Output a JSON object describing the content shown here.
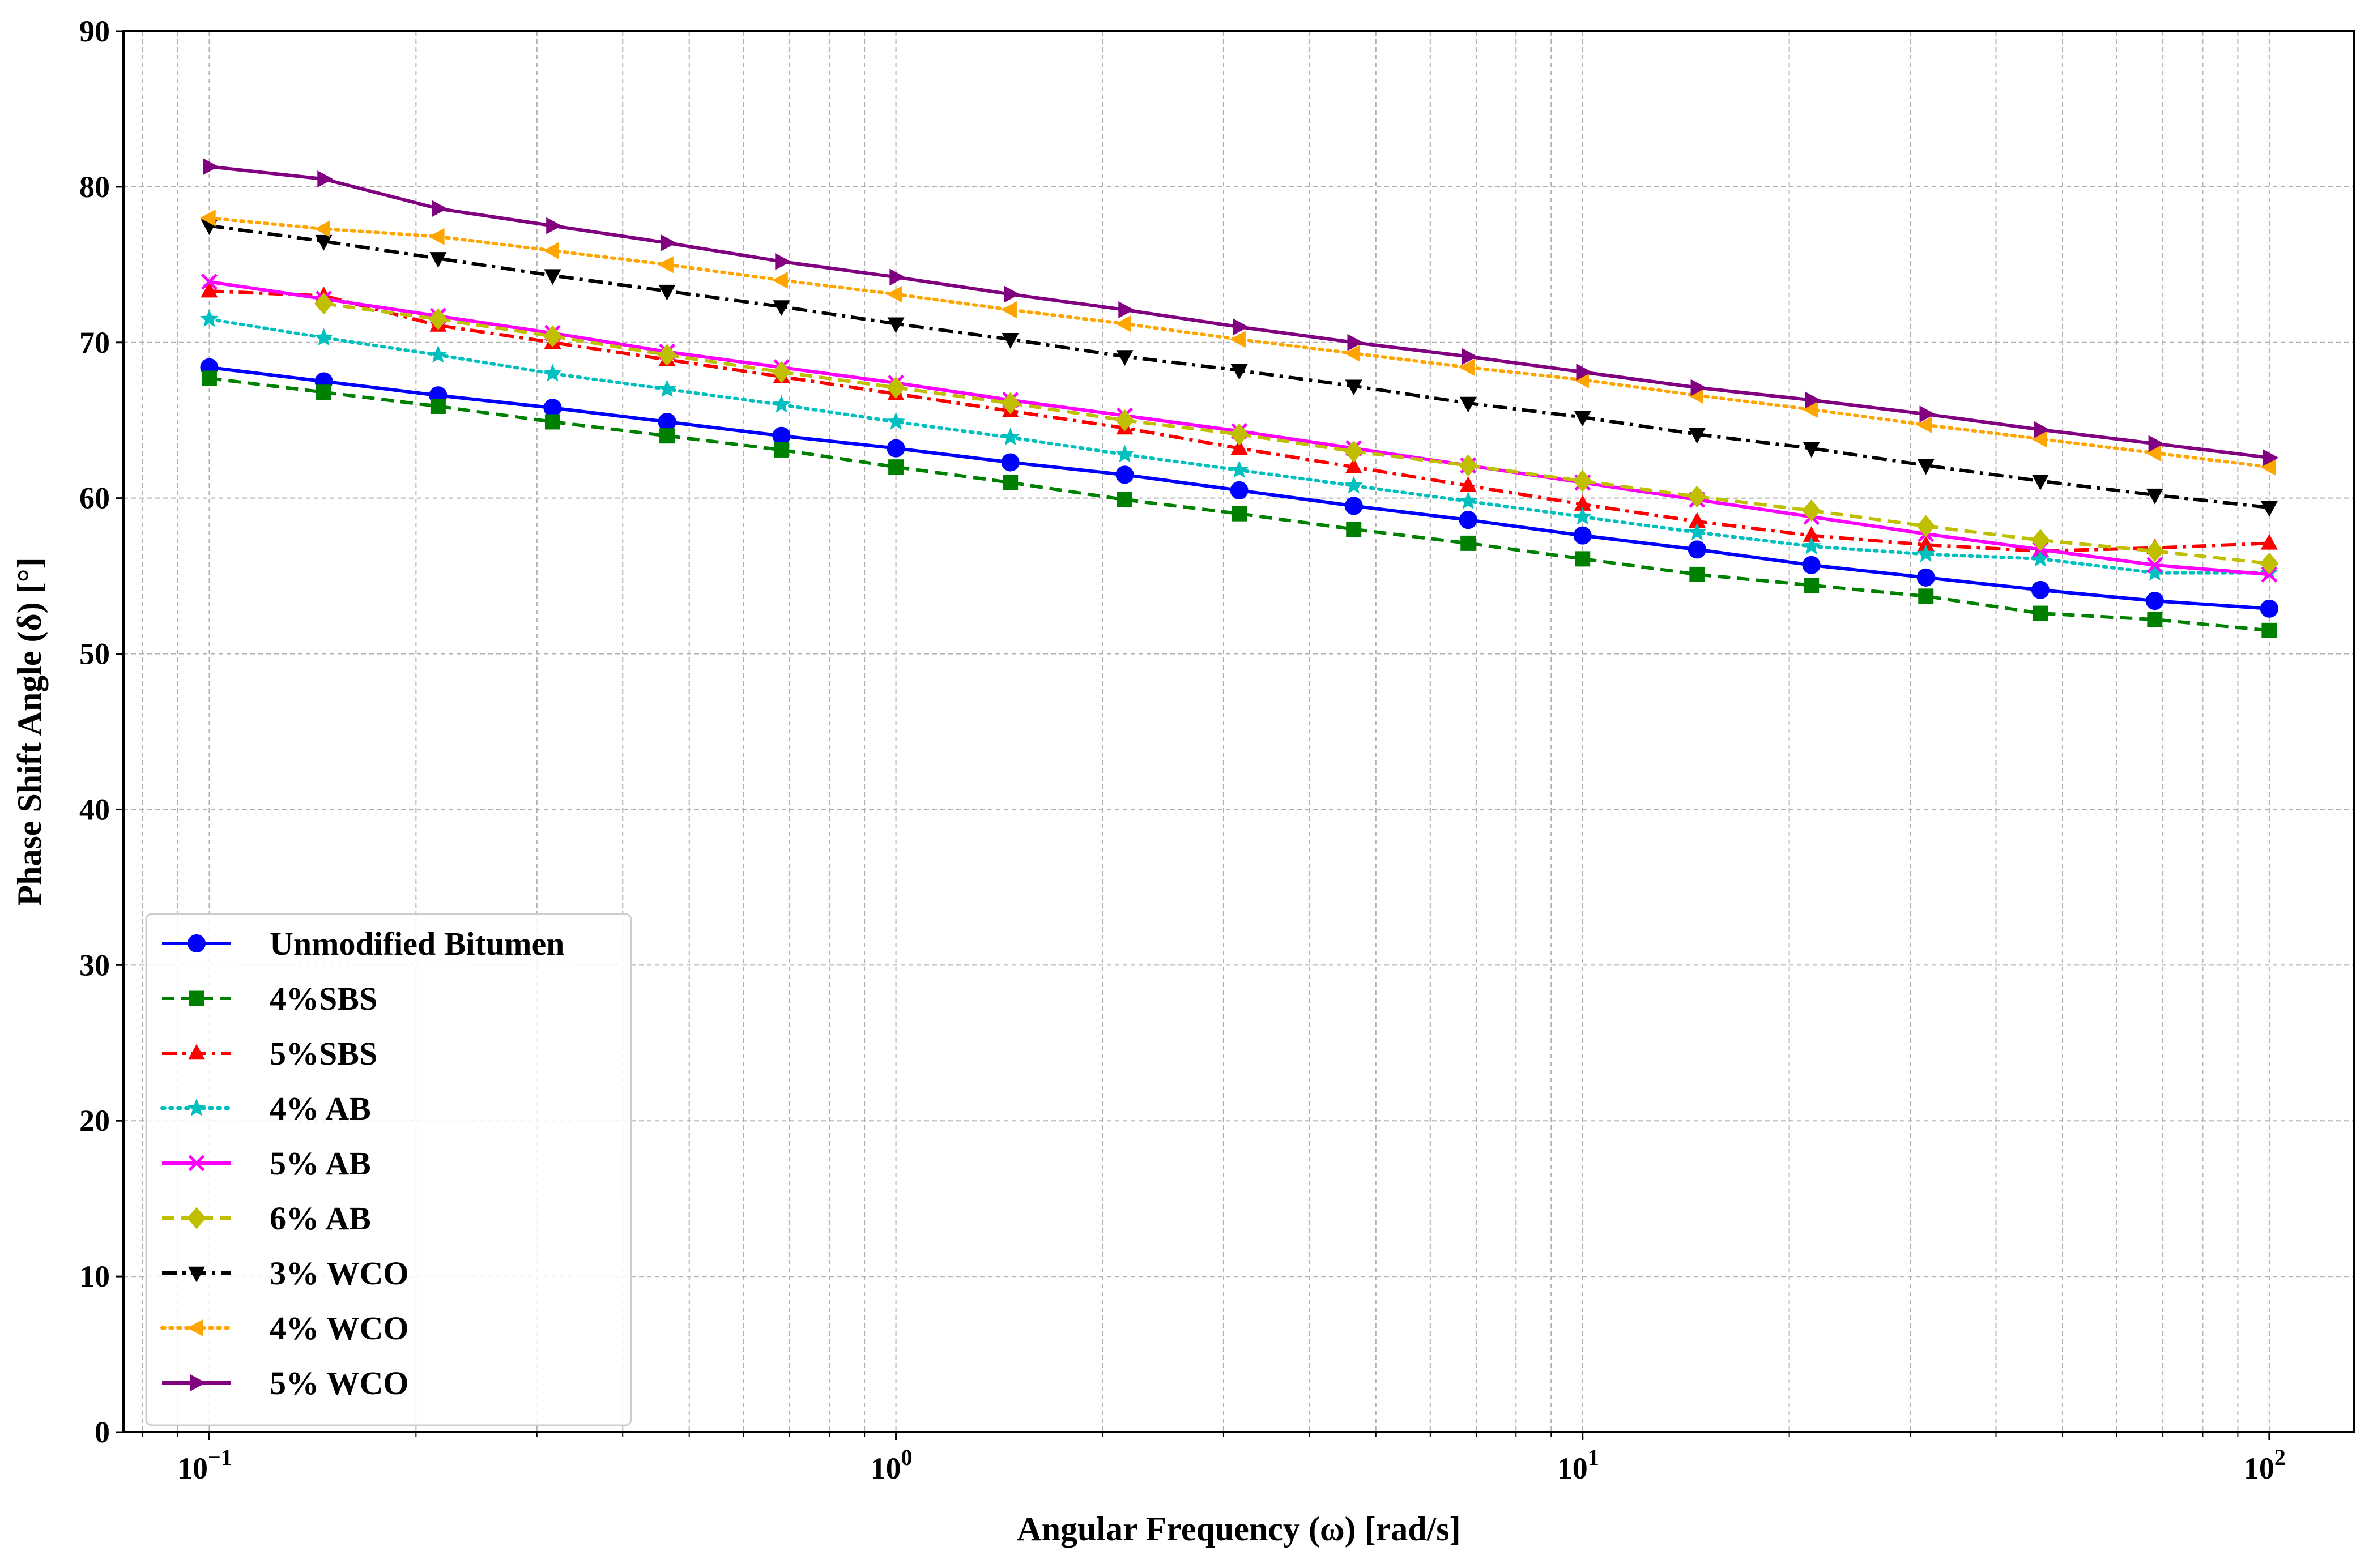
{
  "chart_data": {
    "type": "line",
    "title": "",
    "xlabel": "Angular Frequency (ω) [rad/s]",
    "ylabel": "Phase Shift Angle (δ) [°]",
    "xscale": "log",
    "xlim": [
      0.075,
      133
    ],
    "ylim": [
      0,
      90
    ],
    "grid": true,
    "legend_position": "lower-left",
    "x_tick_labels": [
      {
        "value": 0.1,
        "base": "10",
        "exp": "−1"
      },
      {
        "value": 1,
        "base": "10",
        "exp": "0"
      },
      {
        "value": 10,
        "base": "10",
        "exp": "1"
      },
      {
        "value": 100,
        "base": "10",
        "exp": "2"
      }
    ],
    "y_ticks": [
      0,
      10,
      20,
      30,
      40,
      50,
      60,
      70,
      80,
      90
    ],
    "x": [
      0.1,
      0.1468,
      0.2154,
      0.3162,
      0.4642,
      0.6813,
      1.0,
      1.468,
      2.154,
      3.162,
      4.642,
      6.813,
      10.0,
      14.68,
      21.54,
      31.62,
      46.42,
      68.13,
      100.0
    ],
    "series": [
      {
        "name": "Unmodified Bitumen",
        "color": "#0000ff",
        "dash": "solid",
        "marker": "circle",
        "values": [
          68.4,
          67.5,
          66.6,
          65.8,
          64.9,
          64.0,
          63.2,
          62.3,
          61.5,
          60.5,
          59.5,
          58.6,
          57.6,
          56.7,
          55.7,
          54.9,
          54.1,
          53.4,
          52.9
        ]
      },
      {
        "name": "4%SBS",
        "color": "#008000",
        "dash": "dashed",
        "marker": "square",
        "values": [
          67.7,
          66.8,
          65.9,
          64.9,
          64.0,
          63.1,
          62.0,
          61.0,
          59.9,
          59.0,
          58.0,
          57.1,
          56.1,
          55.1,
          54.4,
          53.7,
          52.6,
          52.2,
          51.5
        ]
      },
      {
        "name": "5%SBS",
        "color": "#ff0000",
        "dash": "dashdot",
        "marker": "triangle-up",
        "values": [
          73.3,
          73.0,
          71.1,
          70.0,
          68.9,
          67.8,
          66.7,
          65.6,
          64.5,
          63.2,
          62.0,
          60.8,
          59.6,
          58.5,
          57.6,
          57.0,
          56.6,
          56.8,
          57.1
        ]
      },
      {
        "name": "4% AB",
        "color": "#00bfbf",
        "dash": "dotted",
        "marker": "star",
        "values": [
          71.5,
          70.3,
          69.2,
          68.0,
          67.0,
          66.0,
          64.9,
          63.9,
          62.8,
          61.8,
          60.8,
          59.8,
          58.8,
          57.8,
          56.9,
          56.4,
          56.1,
          55.2,
          55.2
        ]
      },
      {
        "name": "5% AB",
        "color": "#ff00ff",
        "dash": "solid",
        "marker": "x",
        "values": [
          73.9,
          72.8,
          71.7,
          70.6,
          69.4,
          68.4,
          67.4,
          66.3,
          65.3,
          64.3,
          63.2,
          62.1,
          61.0,
          59.9,
          58.8,
          57.7,
          56.7,
          55.7,
          55.1
        ]
      },
      {
        "name": "6% AB",
        "color": "#bfbf00",
        "dash": "dashed",
        "marker": "diamond",
        "values": [
          null,
          72.5,
          71.5,
          70.4,
          69.2,
          68.1,
          67.1,
          66.1,
          65.0,
          64.1,
          63.0,
          62.1,
          61.1,
          60.1,
          59.2,
          58.2,
          57.3,
          56.6,
          55.8
        ]
      },
      {
        "name": "3% WCO",
        "color": "#000000",
        "dash": "dashdot",
        "marker": "triangle-down",
        "values": [
          77.5,
          76.5,
          75.4,
          74.3,
          73.3,
          72.3,
          71.2,
          70.2,
          69.1,
          68.2,
          67.2,
          66.1,
          65.2,
          64.1,
          63.2,
          62.1,
          61.1,
          60.2,
          59.4
        ]
      },
      {
        "name": "4% WCO",
        "color": "#ffa500",
        "dash": "dotted",
        "marker": "triangle-left",
        "values": [
          78.0,
          77.3,
          76.8,
          75.9,
          75.0,
          74.0,
          73.1,
          72.1,
          71.2,
          70.2,
          69.3,
          68.4,
          67.6,
          66.6,
          65.7,
          64.7,
          63.8,
          62.9,
          62.0
        ]
      },
      {
        "name": "5% WCO",
        "color": "#800080",
        "dash": "solid",
        "marker": "triangle-right",
        "values": [
          81.3,
          80.5,
          78.6,
          77.5,
          76.4,
          75.2,
          74.2,
          73.1,
          72.1,
          71.0,
          70.0,
          69.1,
          68.1,
          67.1,
          66.3,
          65.4,
          64.4,
          63.5,
          62.6
        ]
      }
    ]
  }
}
